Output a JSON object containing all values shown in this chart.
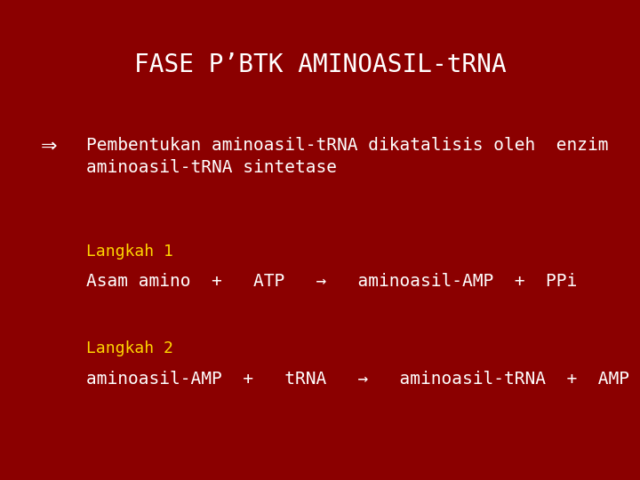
{
  "title": "FASE P’BTK AMINOASIL-tRNA",
  "title_color": "#ffffff",
  "title_fontsize": 20,
  "bg_color": "#8B0000",
  "bullet_text_line1": "Pembentukan aminoasil-tRNA dikatalisis oleh  enzim",
  "bullet_text_line2": "aminoasil-tRNA sintetase",
  "bullet_color": "#ffffff",
  "bullet_fontsize": 14,
  "langkah1_label": "Langkah 1",
  "langkah1_color": "#FFD700",
  "langkah1_fontsize": 13,
  "langkah1_eq": "Asam amino  +   ATP   →   aminoasil-AMP  +  PPi",
  "langkah1_eq_color": "#ffffff",
  "langkah1_eq_fontsize": 14,
  "langkah2_label": "Langkah 2",
  "langkah2_color": "#FFD700",
  "langkah2_fontsize": 13,
  "langkah2_eq": "aminoasil-AMP  +   tRNA   →   aminoasil-tRNA  +  AMP",
  "langkah2_eq_color": "#ffffff",
  "langkah2_eq_fontsize": 14,
  "bullet_symbol": "⇒",
  "bullet_symbol_fontsize": 16,
  "figsize": [
    7.2,
    5.4
  ],
  "dpi": 100
}
